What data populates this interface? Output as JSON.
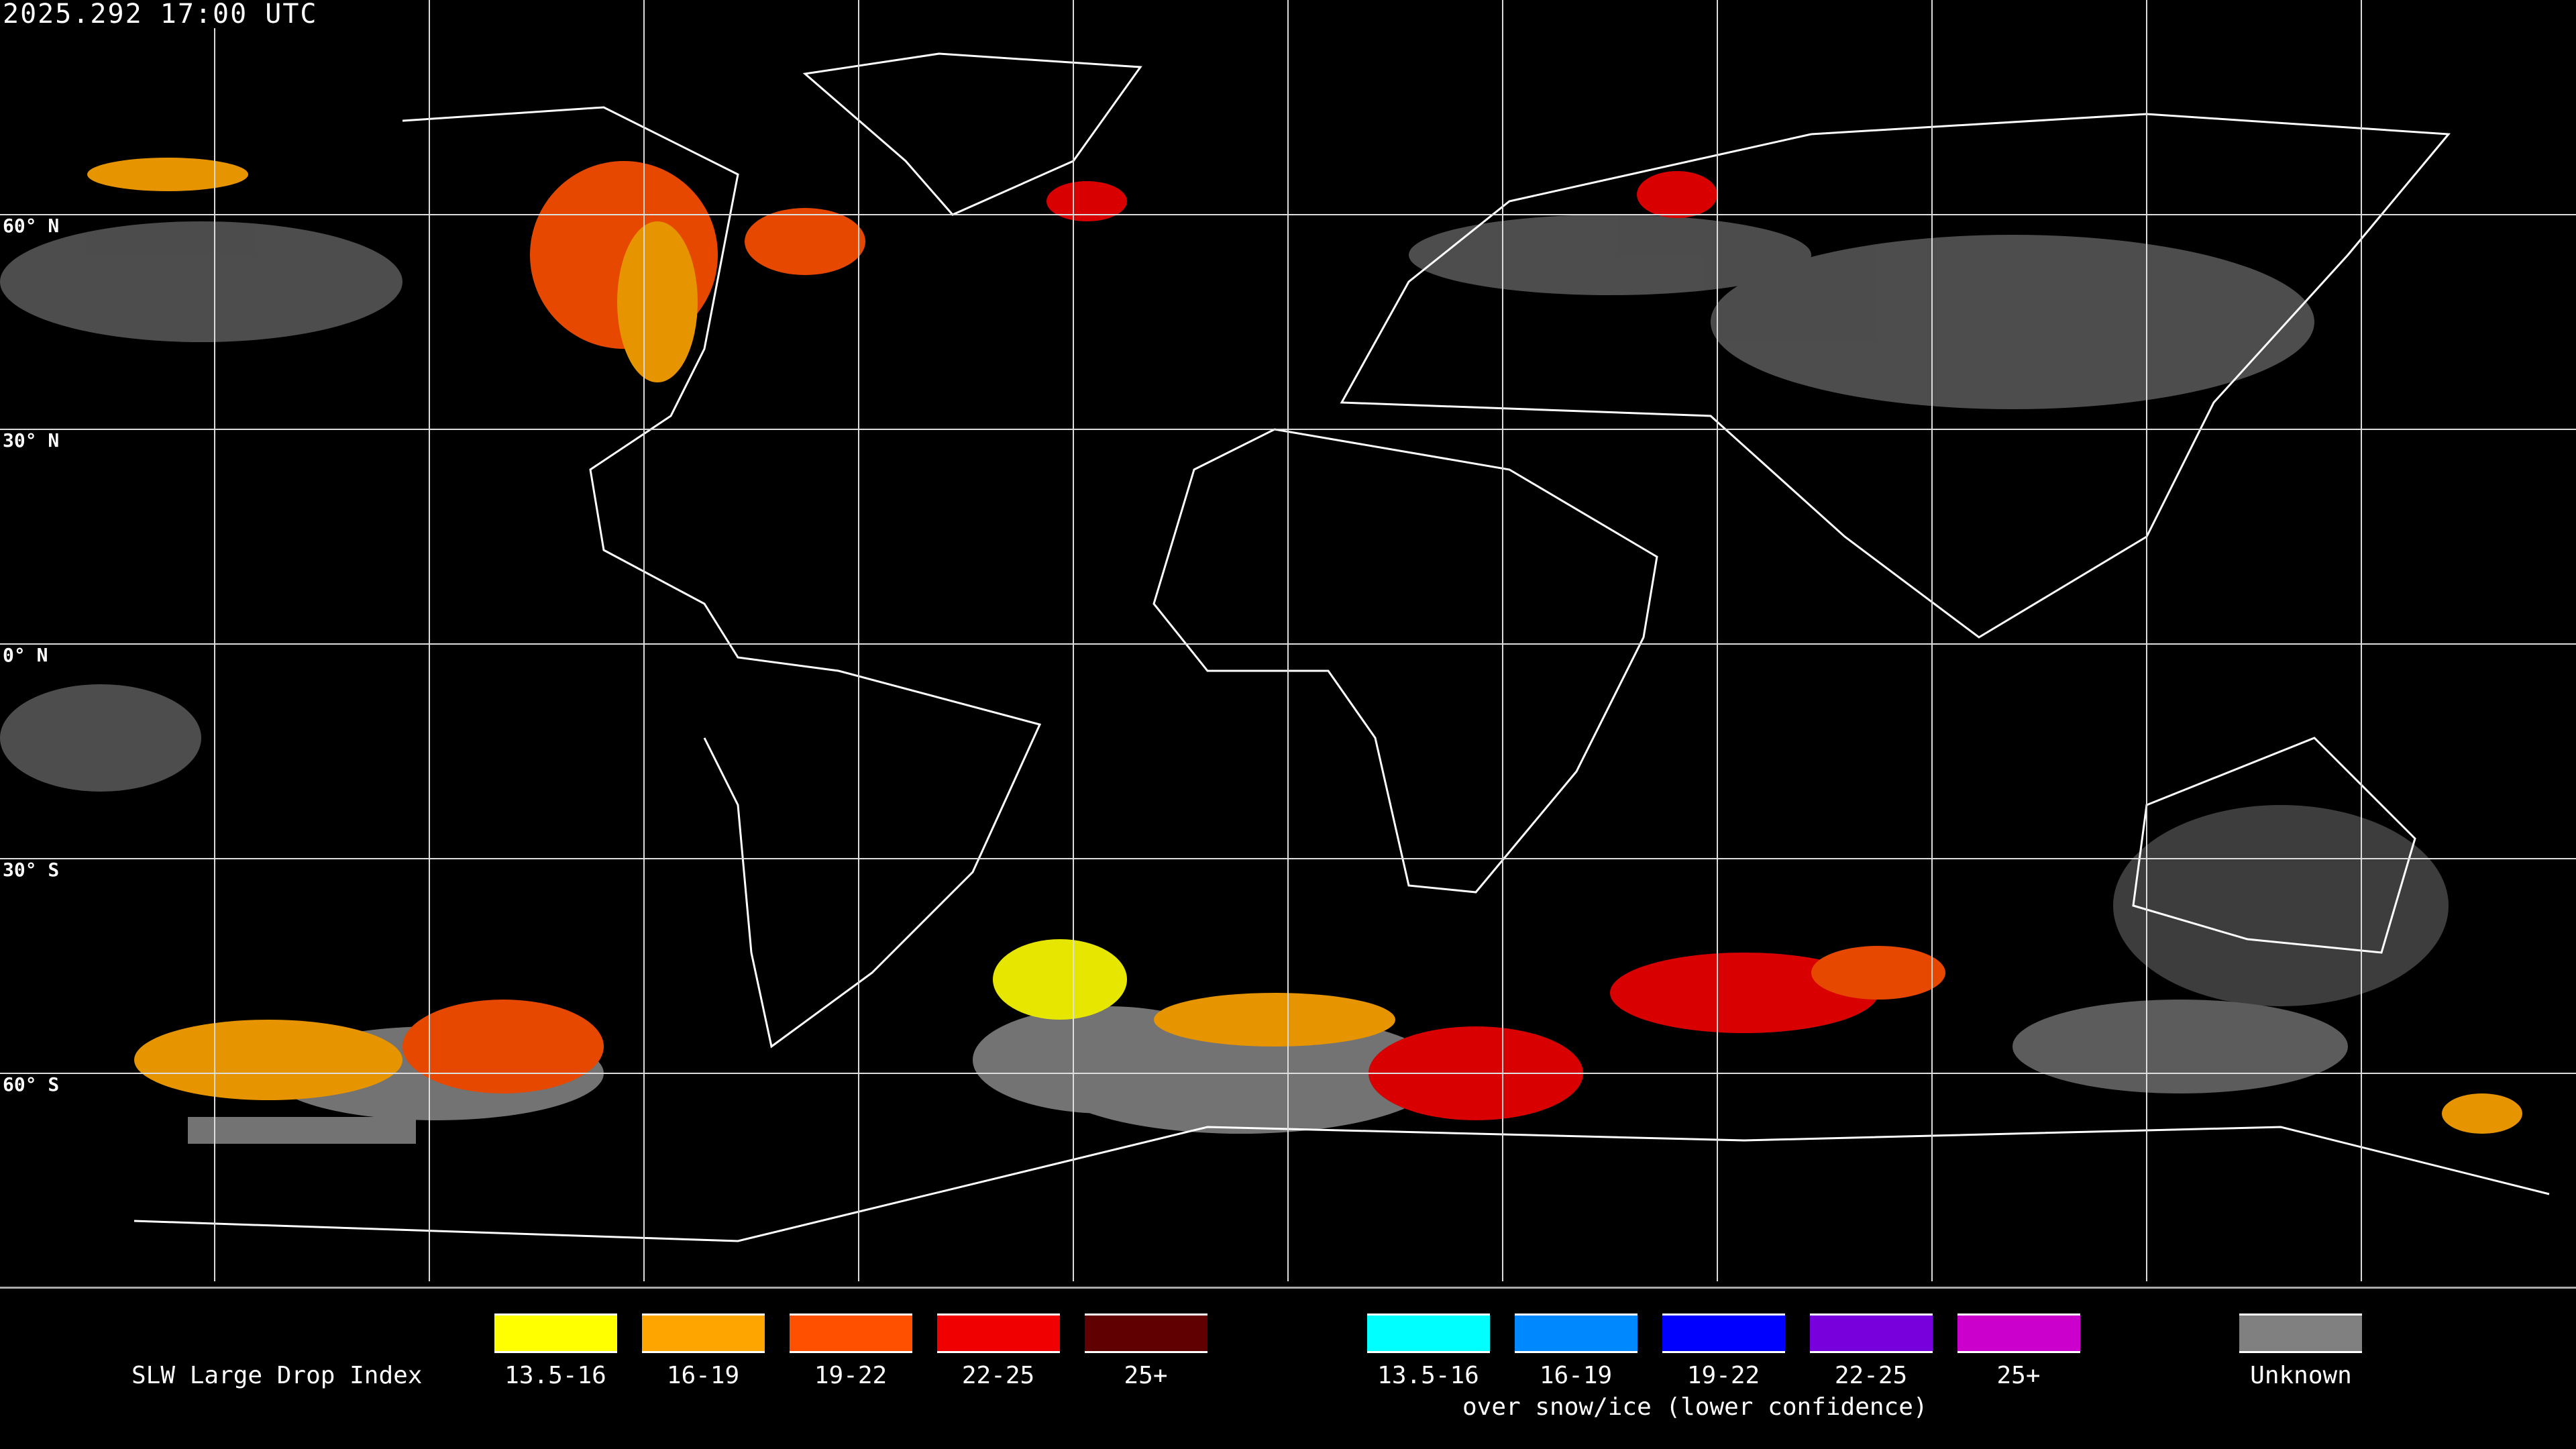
{
  "header": {
    "timestamp": "2025.292 17:00 UTC"
  },
  "map": {
    "lat_labels": [
      "60° N",
      "30° N",
      "0° N",
      "30° S",
      "60° S"
    ],
    "grid_spacing_degrees": 30,
    "background": "#000000",
    "coastline_color": "#ffffff"
  },
  "legend": {
    "title": "SLW Large Drop Index",
    "standard": [
      {
        "label": "13.5-16",
        "color": "#ffff00"
      },
      {
        "label": "16-19",
        "color": "#ffa500"
      },
      {
        "label": "19-22",
        "color": "#ff5000"
      },
      {
        "label": "22-25",
        "color": "#f00000"
      },
      {
        "label": "25+",
        "color": "#600000"
      }
    ],
    "snow_ice": [
      {
        "label": "13.5-16",
        "color": "#00ffff"
      },
      {
        "label": "16-19",
        "color": "#0088ff"
      },
      {
        "label": "19-22",
        "color": "#0000ff"
      },
      {
        "label": "22-25",
        "color": "#7700dd"
      },
      {
        "label": "25+",
        "color": "#cc00cc"
      }
    ],
    "snow_ice_caption": "over snow/ice (lower confidence)",
    "unknown": {
      "label": "Unknown",
      "color": "#808080"
    }
  }
}
